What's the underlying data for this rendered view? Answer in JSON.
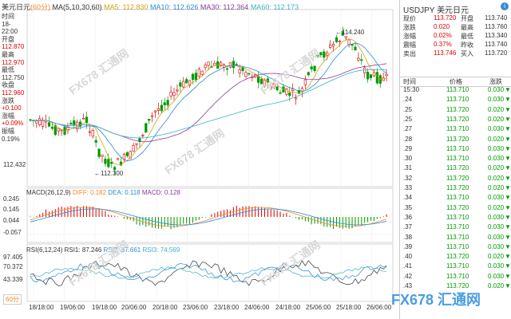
{
  "header": {
    "title": "美元日元",
    "period": "(60分)",
    "ma_label": "MA(5,10,30,60)",
    "ma5": "MA5: 112.830",
    "ma10": "MA10: 112.626",
    "ma30": "MA30: 112.364",
    "ma60": "MA60: 112.173"
  },
  "info": [
    {
      "label": "时间",
      "value": "18-22:00",
      "cls": "g"
    },
    {
      "label": "开盘",
      "value": "112.870",
      "cls": "r"
    },
    {
      "label": "最高",
      "value": "112.970",
      "cls": "r"
    },
    {
      "label": "最低",
      "value": "112.750",
      "cls": "g"
    },
    {
      "label": "收盘",
      "value": "112.960",
      "cls": "r"
    },
    {
      "label": "涨跌",
      "value": "+0.100",
      "cls": "r"
    },
    {
      "label": "涨幅",
      "value": "+0.09%",
      "cls": "r"
    },
    {
      "label": "振幅",
      "value": "0.19%",
      "cls": "g"
    }
  ],
  "price_axis_low": "112.432",
  "annotations": {
    "high": "114.240",
    "low": "112.300"
  },
  "macd": {
    "label": "MACD(26,12,9)",
    "diff": "DIFF: 0.182",
    "dea": "DEA: 0.118",
    "macd": "MACD: 0.128",
    "ticks": [
      "0.245",
      "0.145",
      "0.044",
      "-0.057"
    ]
  },
  "rsi": {
    "label": "RSI(6,12,24)",
    "rsi1": "RSI1: 87.246",
    "rsi2": "RSI2: 87.661",
    "rsi3": "RSI3: 74.569",
    "ticks": [
      "97.405",
      "70.372",
      "43.339"
    ]
  },
  "period_selector": "60分",
  "x_labels": [
    "18/18:00",
    "19/06:00",
    "19/18:00",
    "20/06:00",
    "20/18:00",
    "23/06:00",
    "23/18:00",
    "24/06:00",
    "24/18:00",
    "25/06:00",
    "25/18:00",
    "26/06:00"
  ],
  "watermark": "FX678 汇通网",
  "logo": "FX678 汇通网",
  "quote": {
    "symbol": "USDJPY",
    "name": "美元日元",
    "rows": [
      {
        "l1": "现价",
        "v1": "113.720",
        "l2": "开盘",
        "v2": "113.740"
      },
      {
        "l1": "涨跌",
        "v1": "0.020",
        "l2": "最高",
        "v2": "113.760"
      },
      {
        "l1": "涨幅",
        "v1": "0.02%",
        "l2": "最低",
        "v2": "113.340"
      },
      {
        "l1": "震幅",
        "v1": "0.37%",
        "l2": "昨收",
        "v2": "113.740"
      },
      {
        "l1": "卖出",
        "v1": "113.746",
        "l2": "买入",
        "v2": "113.720"
      }
    ]
  },
  "ticks_header": {
    "time": "时间",
    "price": "价格",
    "change": "涨跌"
  },
  "ticks": [
    {
      "time": "15:30",
      "price": "113.710",
      "change": "0.030"
    },
    {
      "time": ".24",
      "price": "113.710",
      "change": "0.030"
    },
    {
      "time": ".25",
      "price": "113.720",
      "change": "0.020"
    },
    {
      "time": ".25",
      "price": "113.720",
      "change": "0.020"
    },
    {
      "time": ".27",
      "price": "113.710",
      "change": "0.030"
    },
    {
      "time": ".28",
      "price": "113.720",
      "change": "0.020"
    },
    {
      "time": ".29",
      "price": "113.710",
      "change": "0.030"
    },
    {
      "time": ".30",
      "price": "113.710",
      "change": "0.030"
    },
    {
      "time": ".31",
      "price": "113.720",
      "change": "0.020"
    },
    {
      "time": ".32",
      "price": "113.720",
      "change": "0.020"
    },
    {
      "time": ".33",
      "price": "113.720",
      "change": "0.020"
    },
    {
      "time": ".34",
      "price": "113.710",
      "change": "0.030"
    },
    {
      "time": ".35",
      "price": "113.720",
      "change": "0.020"
    },
    {
      "time": ".36",
      "price": "113.710",
      "change": "0.030"
    },
    {
      "time": ".37",
      "price": "113.710",
      "change": "0.030"
    },
    {
      "time": ".38",
      "price": "113.710",
      "change": "0.030"
    },
    {
      "time": ".39",
      "price": "113.710",
      "change": "0.030"
    },
    {
      "time": ".40",
      "price": "113.720",
      "change": "0.020"
    },
    {
      "time": ".41",
      "price": "113.710",
      "change": "0.030"
    },
    {
      "time": ".42",
      "price": "113.710",
      "change": "0.030"
    },
    {
      "time": ".43",
      "price": "113.720",
      "change": "0.020"
    }
  ],
  "colors": {
    "up": "#d00000",
    "down": "#009900",
    "ma5": "#d4a017",
    "ma10": "#2a8ad4",
    "ma30": "#8b3a9b",
    "ma60": "#3ab0c8"
  }
}
